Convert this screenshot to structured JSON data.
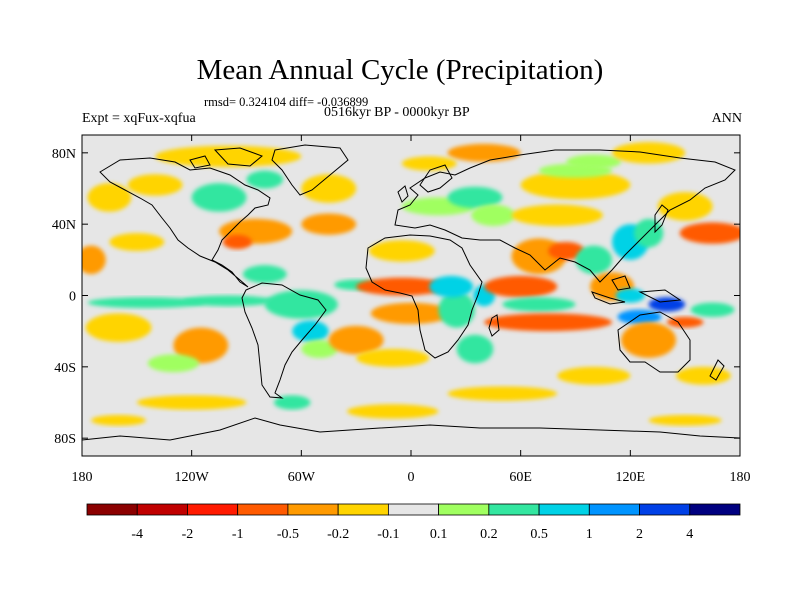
{
  "title": "Mean Annual Cycle (Precipitation)",
  "stats": "rmsd= 0.324104 diff= -0.036899",
  "experiment": "Expt = xqFux-xqfua",
  "period": "0516kyr BP - 0000kyr BP",
  "season": "ANN",
  "map": {
    "lon_range": [
      -180,
      180
    ],
    "lat_range": [
      -90,
      90
    ],
    "lon_ticks": [
      {
        "value": -180,
        "label": "180"
      },
      {
        "value": -120,
        "label": "120W"
      },
      {
        "value": -60,
        "label": "60W"
      },
      {
        "value": 0,
        "label": "0"
      },
      {
        "value": 60,
        "label": "60E"
      },
      {
        "value": 120,
        "label": "120E"
      },
      {
        "value": 180,
        "label": "180"
      }
    ],
    "lat_ticks": [
      {
        "value": 80,
        "label": "80N"
      },
      {
        "value": 40,
        "label": "40N"
      },
      {
        "value": 0,
        "label": "0"
      },
      {
        "value": -40,
        "label": "40S"
      },
      {
        "value": -80,
        "label": "80S"
      }
    ],
    "background_color": "#e6e6e6",
    "coastline_color": "#000000"
  },
  "colorbar": {
    "colors": [
      "#8b0000",
      "#c00000",
      "#ff1a00",
      "#ff5a00",
      "#ff9a00",
      "#ffd400",
      "#e6e6e6",
      "#a0ff60",
      "#33e6a0",
      "#00d2e6",
      "#0094ff",
      "#0040e6",
      "#000080"
    ],
    "labels": [
      "-4",
      "-2",
      "-1",
      "-0.5",
      "-0.2",
      "-0.1",
      "0.1",
      "0.2",
      "0.5",
      "1",
      "2",
      "4"
    ]
  },
  "field_patches": [
    {
      "lon": -150,
      "lat": 3,
      "rx": 30,
      "ry": 3,
      "class": 6
    },
    {
      "lon": -100,
      "lat": 4,
      "rx": 40,
      "ry": 4,
      "class": 6
    },
    {
      "lon": -145,
      "lat": -4,
      "rx": 32,
      "ry": 3,
      "class": 8
    },
    {
      "lon": -100,
      "lat": -3,
      "rx": 25,
      "ry": 3,
      "class": 8
    },
    {
      "lon": -160,
      "lat": -18,
      "rx": 18,
      "ry": 8,
      "class": 5
    },
    {
      "lon": -115,
      "lat": -28,
      "rx": 15,
      "ry": 10,
      "class": 4
    },
    {
      "lon": -130,
      "lat": -38,
      "rx": 14,
      "ry": 5,
      "class": 7
    },
    {
      "lon": -165,
      "lat": 55,
      "rx": 12,
      "ry": 8,
      "class": 5
    },
    {
      "lon": -100,
      "lat": 78,
      "rx": 40,
      "ry": 6,
      "class": 5
    },
    {
      "lon": -140,
      "lat": 62,
      "rx": 15,
      "ry": 6,
      "class": 5
    },
    {
      "lon": -85,
      "lat": 36,
      "rx": 20,
      "ry": 7,
      "class": 4
    },
    {
      "lon": -95,
      "lat": 30,
      "rx": 8,
      "ry": 4,
      "class": 3
    },
    {
      "lon": -80,
      "lat": 12,
      "rx": 12,
      "ry": 5,
      "class": 8
    },
    {
      "lon": -45,
      "lat": 40,
      "rx": 15,
      "ry": 6,
      "class": 4
    },
    {
      "lon": -45,
      "lat": 60,
      "rx": 15,
      "ry": 8,
      "class": 5
    },
    {
      "lon": -60,
      "lat": -5,
      "rx": 20,
      "ry": 8,
      "class": 8
    },
    {
      "lon": -55,
      "lat": -20,
      "rx": 10,
      "ry": 6,
      "class": 9
    },
    {
      "lon": -50,
      "lat": -30,
      "rx": 10,
      "ry": 5,
      "class": 7
    },
    {
      "lon": -30,
      "lat": 6,
      "rx": 12,
      "ry": 3,
      "class": 8
    },
    {
      "lon": -30,
      "lat": -25,
      "rx": 15,
      "ry": 8,
      "class": 4
    },
    {
      "lon": -5,
      "lat": 5,
      "rx": 25,
      "ry": 5,
      "class": 3
    },
    {
      "lon": 0,
      "lat": -10,
      "rx": 22,
      "ry": 6,
      "class": 4
    },
    {
      "lon": -10,
      "lat": -35,
      "rx": 20,
      "ry": 5,
      "class": 5
    },
    {
      "lon": 25,
      "lat": -8,
      "rx": 10,
      "ry": 10,
      "class": 8
    },
    {
      "lon": 35,
      "lat": -30,
      "rx": 10,
      "ry": 8,
      "class": 8
    },
    {
      "lon": 22,
      "lat": 5,
      "rx": 12,
      "ry": 6,
      "class": 9
    },
    {
      "lon": 40,
      "lat": 0,
      "rx": 6,
      "ry": 6,
      "class": 9
    },
    {
      "lon": 40,
      "lat": 80,
      "rx": 20,
      "ry": 5,
      "class": 4
    },
    {
      "lon": 10,
      "lat": 74,
      "rx": 15,
      "ry": 4,
      "class": 5
    },
    {
      "lon": 15,
      "lat": 50,
      "rx": 20,
      "ry": 5,
      "class": 7
    },
    {
      "lon": 35,
      "lat": 55,
      "rx": 15,
      "ry": 6,
      "class": 8
    },
    {
      "lon": 45,
      "lat": 45,
      "rx": 12,
      "ry": 6,
      "class": 7
    },
    {
      "lon": 90,
      "lat": 62,
      "rx": 30,
      "ry": 8,
      "class": 5
    },
    {
      "lon": 90,
      "lat": 70,
      "rx": 20,
      "ry": 4,
      "class": 7
    },
    {
      "lon": 100,
      "lat": 75,
      "rx": 15,
      "ry": 4,
      "class": 7
    },
    {
      "lon": 130,
      "lat": 80,
      "rx": 20,
      "ry": 6,
      "class": 5
    },
    {
      "lon": 80,
      "lat": 45,
      "rx": 25,
      "ry": 6,
      "class": 5
    },
    {
      "lon": 70,
      "lat": 22,
      "rx": 15,
      "ry": 10,
      "class": 4
    },
    {
      "lon": 85,
      "lat": 25,
      "rx": 10,
      "ry": 5,
      "class": 3
    },
    {
      "lon": 100,
      "lat": 20,
      "rx": 10,
      "ry": 8,
      "class": 8
    },
    {
      "lon": 120,
      "lat": 30,
      "rx": 10,
      "ry": 10,
      "class": 9
    },
    {
      "lon": 130,
      "lat": 35,
      "rx": 8,
      "ry": 8,
      "class": 8
    },
    {
      "lon": 165,
      "lat": 35,
      "rx": 18,
      "ry": 6,
      "class": 3
    },
    {
      "lon": 150,
      "lat": 50,
      "rx": 15,
      "ry": 8,
      "class": 5
    },
    {
      "lon": 60,
      "lat": 5,
      "rx": 20,
      "ry": 6,
      "class": 3
    },
    {
      "lon": 70,
      "lat": -5,
      "rx": 20,
      "ry": 4,
      "class": 8
    },
    {
      "lon": 75,
      "lat": -15,
      "rx": 35,
      "ry": 5,
      "class": 3
    },
    {
      "lon": 110,
      "lat": 5,
      "rx": 12,
      "ry": 8,
      "class": 4
    },
    {
      "lon": 120,
      "lat": 0,
      "rx": 8,
      "ry": 4,
      "class": 9
    },
    {
      "lon": 140,
      "lat": -5,
      "rx": 10,
      "ry": 4,
      "class": 11
    },
    {
      "lon": 125,
      "lat": -12,
      "rx": 12,
      "ry": 4,
      "class": 10
    },
    {
      "lon": 150,
      "lat": -15,
      "rx": 10,
      "ry": 3,
      "class": 3
    },
    {
      "lon": 165,
      "lat": -8,
      "rx": 12,
      "ry": 4,
      "class": 8
    },
    {
      "lon": 130,
      "lat": -25,
      "rx": 15,
      "ry": 10,
      "class": 4
    },
    {
      "lon": 100,
      "lat": -45,
      "rx": 20,
      "ry": 5,
      "class": 5
    },
    {
      "lon": 160,
      "lat": -45,
      "rx": 15,
      "ry": 5,
      "class": 5
    },
    {
      "lon": 50,
      "lat": -55,
      "rx": 30,
      "ry": 4,
      "class": 5
    },
    {
      "lon": -120,
      "lat": -60,
      "rx": 30,
      "ry": 4,
      "class": 5
    },
    {
      "lon": -10,
      "lat": -65,
      "rx": 25,
      "ry": 4,
      "class": 5
    },
    {
      "lon": 150,
      "lat": -70,
      "rx": 20,
      "ry": 3,
      "class": 5
    },
    {
      "lon": -160,
      "lat": -70,
      "rx": 15,
      "ry": 3,
      "class": 5
    },
    {
      "lon": -65,
      "lat": -60,
      "rx": 10,
      "ry": 4,
      "class": 8
    },
    {
      "lon": -175,
      "lat": 20,
      "rx": 8,
      "ry": 8,
      "class": 4
    },
    {
      "lon": -150,
      "lat": 30,
      "rx": 15,
      "ry": 5,
      "class": 5
    },
    {
      "lon": -5,
      "lat": 25,
      "rx": 18,
      "ry": 6,
      "class": 5
    },
    {
      "lon": -105,
      "lat": 55,
      "rx": 15,
      "ry": 8,
      "class": 8
    },
    {
      "lon": -80,
      "lat": 65,
      "rx": 10,
      "ry": 5,
      "class": 8
    }
  ]
}
